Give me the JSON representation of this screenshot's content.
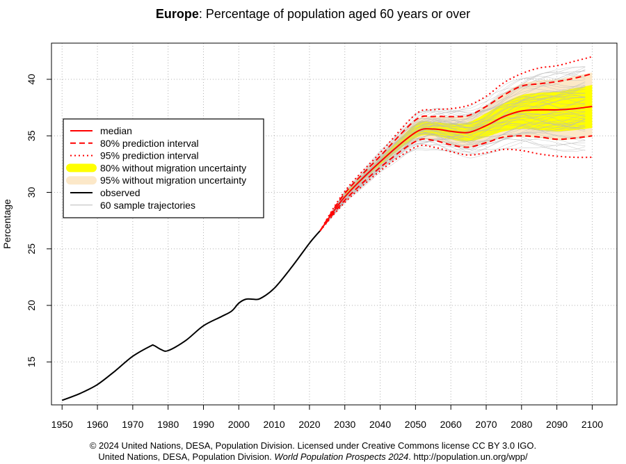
{
  "title": {
    "bold": "Europe",
    "rest": ": Percentage of population aged 60 years or over"
  },
  "credits": {
    "line1": "© 2024 United Nations, DESA, Population Division. Licensed under Creative Commons license CC BY 3.0 IGO.",
    "line2_start": "United Nations, DESA, Population Division.",
    "line2_italic": "World Population Prospects 2024",
    "line2_end": ". http://population.un.org/wpp/"
  },
  "colors": {
    "median": "#ff0000",
    "band80": "#ffff00",
    "band95": "#fce8c8",
    "observed": "#000000",
    "trajectories": "#b8b8b8",
    "grid": "#b0b0b0"
  },
  "chart_data": {
    "type": "line",
    "title": "Europe: Percentage of population aged 60 years or over",
    "xlabel": "",
    "ylabel": "Percentage",
    "xlim": [
      1947,
      2107
    ],
    "ylim": [
      11.2,
      43.2
    ],
    "xticks": [
      1950,
      1960,
      1970,
      1980,
      1990,
      2000,
      2010,
      2020,
      2030,
      2040,
      2050,
      2060,
      2070,
      2080,
      2090,
      2100
    ],
    "yticks": [
      15,
      20,
      25,
      30,
      35,
      40
    ],
    "grid": true,
    "legend": {
      "position": "left",
      "entries": [
        {
          "label": "median",
          "style": "median"
        },
        {
          "label": "80% prediction interval",
          "style": "pi80"
        },
        {
          "label": "95% prediction interval",
          "style": "pi95"
        },
        {
          "label": "80% without migration uncertainty",
          "style": "band80"
        },
        {
          "label": "95% without migration uncertainty",
          "style": "band95"
        },
        {
          "label": "observed",
          "style": "observed"
        },
        {
          "label": "60 sample trajectories",
          "style": "traj"
        }
      ]
    },
    "observed": {
      "x": [
        1950,
        1955,
        1960,
        1965,
        1970,
        1975,
        1976,
        1978,
        1980,
        1985,
        1990,
        1995,
        1998,
        2000,
        2002,
        2004,
        2006,
        2010,
        2015,
        2020,
        2023
      ],
      "y": [
        11.6,
        12.2,
        13.0,
        14.2,
        15.5,
        16.4,
        16.45,
        16.1,
        16.0,
        16.9,
        18.2,
        19.0,
        19.5,
        20.2,
        20.55,
        20.55,
        20.6,
        21.5,
        23.4,
        25.5,
        26.6
      ]
    },
    "median": {
      "x": [
        2023,
        2030,
        2040,
        2050,
        2055,
        2060,
        2065,
        2070,
        2075,
        2080,
        2085,
        2090,
        2095,
        2100
      ],
      "y": [
        26.6,
        29.6,
        32.7,
        35.3,
        35.6,
        35.4,
        35.3,
        35.9,
        36.7,
        37.2,
        37.3,
        37.3,
        37.4,
        37.6
      ]
    },
    "pi80": {
      "x": [
        2023,
        2030,
        2040,
        2050,
        2055,
        2060,
        2065,
        2070,
        2075,
        2080,
        2085,
        2090,
        2095,
        2100
      ],
      "lower": [
        26.6,
        29.3,
        32.2,
        34.5,
        34.6,
        34.2,
        34.0,
        34.4,
        34.9,
        35.0,
        34.9,
        34.7,
        34.8,
        35.0
      ],
      "upper": [
        26.6,
        29.9,
        33.2,
        36.4,
        36.7,
        36.7,
        36.8,
        37.6,
        38.6,
        39.4,
        39.6,
        39.8,
        40.1,
        40.5
      ]
    },
    "pi95": {
      "x": [
        2023,
        2030,
        2040,
        2050,
        2055,
        2060,
        2065,
        2070,
        2075,
        2080,
        2085,
        2090,
        2095,
        2100
      ],
      "lower": [
        26.6,
        29.1,
        31.9,
        34.0,
        34.0,
        33.6,
        33.3,
        33.5,
        33.8,
        33.7,
        33.4,
        33.2,
        33.1,
        33.1
      ],
      "upper": [
        26.6,
        30.1,
        33.5,
        36.9,
        37.3,
        37.4,
        37.7,
        38.5,
        39.7,
        40.5,
        41.0,
        41.2,
        41.6,
        42.0
      ]
    },
    "band80": {
      "x": [
        2023,
        2030,
        2040,
        2050,
        2055,
        2060,
        2065,
        2070,
        2075,
        2080,
        2085,
        2090,
        2095,
        2100
      ],
      "lower": [
        26.6,
        29.5,
        32.4,
        34.8,
        35.0,
        34.7,
        34.5,
        34.9,
        35.4,
        35.6,
        35.5,
        35.4,
        35.5,
        35.7
      ],
      "upper": [
        26.6,
        29.8,
        33.0,
        36.0,
        36.2,
        36.1,
        36.2,
        37.0,
        37.9,
        38.6,
        38.8,
        38.9,
        39.2,
        39.5
      ]
    },
    "band95": {
      "x": [
        2023,
        2030,
        2040,
        2050,
        2055,
        2060,
        2065,
        2070,
        2075,
        2080,
        2085,
        2090,
        2095,
        2100
      ],
      "lower": [
        26.6,
        29.3,
        32.2,
        34.5,
        34.6,
        34.2,
        34.0,
        34.4,
        34.8,
        34.9,
        34.8,
        34.6,
        34.7,
        34.9
      ],
      "upper": [
        26.6,
        30.0,
        33.3,
        36.4,
        36.7,
        36.7,
        36.8,
        37.7,
        38.8,
        39.6,
        39.9,
        40.0,
        40.3,
        40.6
      ]
    },
    "sample_trajectories": {
      "count": 60,
      "x_start": 2023,
      "x_end": 2100
    }
  }
}
